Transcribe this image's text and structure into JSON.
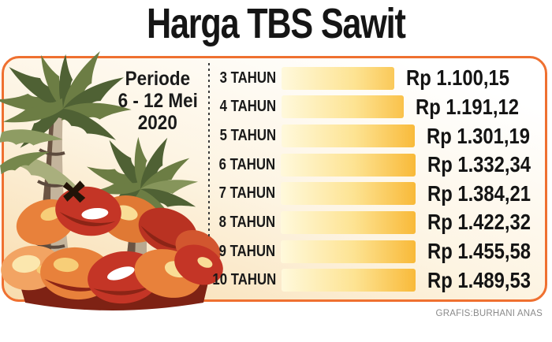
{
  "title": "Harga TBS Sawit",
  "period": {
    "lines": [
      "Periode",
      "6 - 12 Mei",
      "2020"
    ]
  },
  "credit": "GRAFIS:BURHANI ANAS",
  "colors": {
    "border_orange": "#EF7030",
    "bar_gradient_start": "#FFF9DC",
    "bar_gradient_end": "#F7AD1E",
    "panel_background_top": "#FFFFFF",
    "panel_background_bottom": "#F8DCAD",
    "text_black": "#151515",
    "credit_gray": "#8A8A8A"
  },
  "illustration": {
    "icon_name": "palm-trees-and-fruit-bunches-illustration"
  },
  "chart_data": {
    "type": "bar",
    "orientation": "horizontal",
    "title": "Harga TBS Sawit",
    "subtitle": "Periode 6 - 12 Mei 2020",
    "categories": [
      "3 TAHUN",
      "4 TAHUN",
      "5 TAHUN",
      "6 TAHUN",
      "7 TAHUN",
      "8 TAHUN",
      "9 TAHUN",
      "10 TAHUN"
    ],
    "values": [
      1100.15,
      1191.12,
      1301.19,
      1332.34,
      1384.21,
      1422.32,
      1455.58,
      1489.53
    ],
    "value_labels": [
      "Rp 1.100,15",
      "Rp 1.191,12",
      "Rp 1.301,19",
      "Rp 1.332,34",
      "Rp 1.384,21",
      "Rp 1.422,32",
      "Rp 1.455,58",
      "Rp 1.489,53"
    ],
    "unit": "Rp",
    "xlabel": "",
    "ylabel": "",
    "legend": false,
    "grid": false,
    "value_axis_range": [
      0,
      1489.53
    ]
  }
}
